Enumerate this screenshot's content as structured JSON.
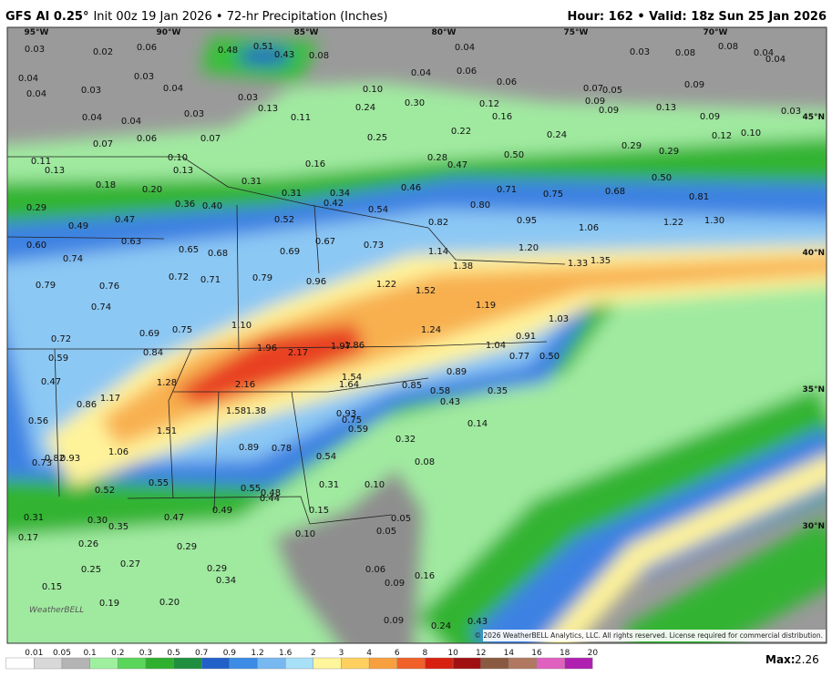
{
  "header": {
    "model": "GFS AI 0.25°",
    "run": "Init 00z 19 Jan 2026 • 72-hr Precipitation (Inches)",
    "hour": "Hour: 162 • Valid: 18z Sun 25 Jan 2026"
  },
  "graticule": [
    "95°W",
    "90°W",
    "85°W",
    "80°W",
    "75°W",
    "70°W",
    "45°N",
    "40°N",
    "35°N",
    "30°N"
  ],
  "map_labels": [
    "0.03",
    "0.02",
    "0.06",
    "0.48",
    "0.51",
    "0.43",
    "0.08",
    "0.04",
    "0.03",
    "0.08",
    "0.08",
    "0.04",
    "0.04",
    "0.04",
    "0.04",
    "0.03",
    "0.03",
    "0.04",
    "0.03",
    "0.13",
    "0.10",
    "0.04",
    "0.06",
    "0.06",
    "0.07",
    "0.05",
    "0.09",
    "0.12",
    "0.30",
    "0.24",
    "0.16",
    "0.09",
    "0.09",
    "0.13",
    "0.09",
    "0.03",
    "0.04",
    "0.04",
    "0.06",
    "0.03",
    "0.07",
    "0.11",
    "0.25",
    "0.22",
    "0.24",
    "0.12",
    "0.10",
    "0.07",
    "0.11",
    "0.13",
    "0.10",
    "0.13",
    "0.31",
    "0.16",
    "0.28",
    "0.47",
    "0.50",
    "0.29",
    "0.29",
    "0.50",
    "0.18",
    "0.20",
    "0.36",
    "0.40",
    "0.31",
    "0.34",
    "0.42",
    "0.54",
    "0.46",
    "0.71",
    "0.75",
    "0.68",
    "0.81",
    "0.29",
    "0.49",
    "0.47",
    "0.52",
    "0.82",
    "0.80",
    "0.95",
    "1.06",
    "1.22",
    "1.30",
    "0.60",
    "0.63",
    "0.65",
    "0.68",
    "0.69",
    "0.67",
    "0.73",
    "1.14",
    "1.20",
    "0.74",
    "0.79",
    "0.76",
    "0.72",
    "0.71",
    "0.79",
    "0.96",
    "1.22",
    "1.52",
    "1.38",
    "1.33",
    "1.35",
    "0.74",
    "1.19",
    "1.03",
    "1.10",
    "0.69",
    "0.75",
    "1.24",
    "0.72",
    "0.84",
    "1.96",
    "2.17",
    "1.97",
    "1.86",
    "1.04",
    "0.91",
    "0.77",
    "0.50",
    "0.59",
    "0.47",
    "1.17",
    "0.86",
    "1.28",
    "2.16",
    "1.54",
    "1.64",
    "0.85",
    "0.89",
    "0.58",
    "0.43",
    "0.35",
    "0.56",
    "1.58",
    "1.38",
    "0.93",
    "0.75",
    "0.59",
    "0.14",
    "1.51",
    "0.32",
    "1.06",
    "0.89",
    "0.78",
    "0.54",
    "0.82",
    "0.93",
    "0.73",
    "0.08",
    "0.55",
    "0.31",
    "0.10",
    "0.52",
    "0.55",
    "0.48",
    "0.44",
    "0.49",
    "0.15",
    "0.47",
    "0.31",
    "0.30",
    "0.35",
    "0.10",
    "0.05",
    "0.05",
    "0.17",
    "0.26",
    "0.29",
    "0.25",
    "0.27",
    "0.29",
    "0.34",
    "0.06",
    "0.09",
    "0.16",
    "0.15",
    "0.19",
    "0.20",
    "0.09",
    "0.24",
    "0.43"
  ],
  "watermark": "WeatherBELL",
  "copyright": "© 2026 WeatherBELL Analytics, LLC. All rights reserved. License required for commercial distribution.",
  "legend": {
    "labels": [
      "0.01",
      "0.05",
      "0.1",
      "0.2",
      "0.3",
      "0.5",
      "0.7",
      "0.9",
      "1.2",
      "1.6",
      "2",
      "3",
      "4",
      "6",
      "8",
      "10",
      "12",
      "14",
      "16",
      "18",
      "20"
    ],
    "colors": [
      "#ffffff",
      "#d8d8d8",
      "#b4b4b4",
      "#9ef09e",
      "#5ad65a",
      "#2fb02f",
      "#1f8f3f",
      "#2060c8",
      "#3c8ce6",
      "#78b8f0",
      "#a8e0f8",
      "#fff59a",
      "#ffd060",
      "#f8a040",
      "#f06028",
      "#d82010",
      "#a01010",
      "#8a5a40",
      "#b07860",
      "#e060c0",
      "#b020b0"
    ]
  },
  "max": {
    "label": "Max:",
    "value": "2.26"
  }
}
